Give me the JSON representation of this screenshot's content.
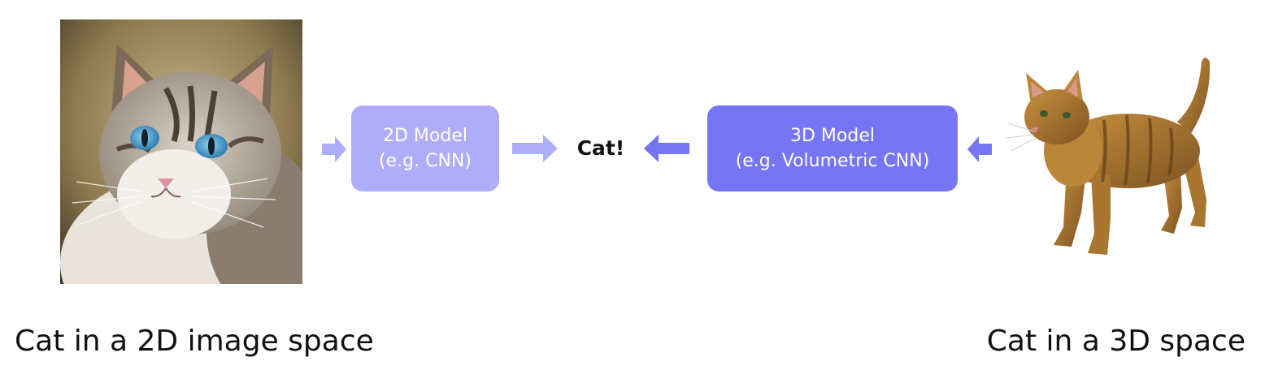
{
  "colors": {
    "model_2d_fill": "#aeadfa",
    "model_3d_fill": "#7675f5",
    "arrow_light": "#aeadfa",
    "arrow_dark": "#7675f5"
  },
  "left": {
    "image": "cat-photo",
    "caption": "Cat in a 2D image space"
  },
  "right": {
    "image": "cat-3d-model",
    "caption": "Cat in a 3D space"
  },
  "model_2d": {
    "line1": "2D Model",
    "line2": "(e.g. CNN)"
  },
  "model_3d": {
    "line1": "3D Model",
    "line2": "(e.g. Volumetric CNN)"
  },
  "result": {
    "label": "Cat!"
  }
}
